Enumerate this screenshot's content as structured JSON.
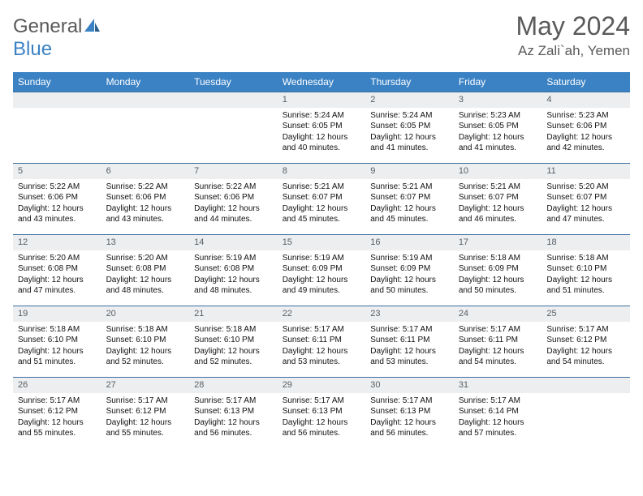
{
  "logo": {
    "textGeneral": "General",
    "textBlue": "Blue"
  },
  "title": "May 2024",
  "location": "Az Zali`ah, Yemen",
  "colors": {
    "header_bg": "#3b82c4",
    "header_text": "#ffffff",
    "row_border": "#3b6fa0",
    "daynum_bg": "#eceeef",
    "daynum_text": "#576068",
    "body_text": "#111111",
    "page_bg": "#ffffff",
    "title_text": "#5a5a5a"
  },
  "typography": {
    "title_fontsize": 32,
    "location_fontsize": 17,
    "dayheader_fontsize": 12,
    "daynum_fontsize": 11,
    "body_fontsize": 10
  },
  "day_headers": [
    "Sunday",
    "Monday",
    "Tuesday",
    "Wednesday",
    "Thursday",
    "Friday",
    "Saturday"
  ],
  "weeks": [
    [
      {
        "num": "",
        "sunrise": "",
        "sunset": "",
        "daylight": ""
      },
      {
        "num": "",
        "sunrise": "",
        "sunset": "",
        "daylight": ""
      },
      {
        "num": "",
        "sunrise": "",
        "sunset": "",
        "daylight": ""
      },
      {
        "num": "1",
        "sunrise": "Sunrise: 5:24 AM",
        "sunset": "Sunset: 6:05 PM",
        "daylight": "Daylight: 12 hours and 40 minutes."
      },
      {
        "num": "2",
        "sunrise": "Sunrise: 5:24 AM",
        "sunset": "Sunset: 6:05 PM",
        "daylight": "Daylight: 12 hours and 41 minutes."
      },
      {
        "num": "3",
        "sunrise": "Sunrise: 5:23 AM",
        "sunset": "Sunset: 6:05 PM",
        "daylight": "Daylight: 12 hours and 41 minutes."
      },
      {
        "num": "4",
        "sunrise": "Sunrise: 5:23 AM",
        "sunset": "Sunset: 6:06 PM",
        "daylight": "Daylight: 12 hours and 42 minutes."
      }
    ],
    [
      {
        "num": "5",
        "sunrise": "Sunrise: 5:22 AM",
        "sunset": "Sunset: 6:06 PM",
        "daylight": "Daylight: 12 hours and 43 minutes."
      },
      {
        "num": "6",
        "sunrise": "Sunrise: 5:22 AM",
        "sunset": "Sunset: 6:06 PM",
        "daylight": "Daylight: 12 hours and 43 minutes."
      },
      {
        "num": "7",
        "sunrise": "Sunrise: 5:22 AM",
        "sunset": "Sunset: 6:06 PM",
        "daylight": "Daylight: 12 hours and 44 minutes."
      },
      {
        "num": "8",
        "sunrise": "Sunrise: 5:21 AM",
        "sunset": "Sunset: 6:07 PM",
        "daylight": "Daylight: 12 hours and 45 minutes."
      },
      {
        "num": "9",
        "sunrise": "Sunrise: 5:21 AM",
        "sunset": "Sunset: 6:07 PM",
        "daylight": "Daylight: 12 hours and 45 minutes."
      },
      {
        "num": "10",
        "sunrise": "Sunrise: 5:21 AM",
        "sunset": "Sunset: 6:07 PM",
        "daylight": "Daylight: 12 hours and 46 minutes."
      },
      {
        "num": "11",
        "sunrise": "Sunrise: 5:20 AM",
        "sunset": "Sunset: 6:07 PM",
        "daylight": "Daylight: 12 hours and 47 minutes."
      }
    ],
    [
      {
        "num": "12",
        "sunrise": "Sunrise: 5:20 AM",
        "sunset": "Sunset: 6:08 PM",
        "daylight": "Daylight: 12 hours and 47 minutes."
      },
      {
        "num": "13",
        "sunrise": "Sunrise: 5:20 AM",
        "sunset": "Sunset: 6:08 PM",
        "daylight": "Daylight: 12 hours and 48 minutes."
      },
      {
        "num": "14",
        "sunrise": "Sunrise: 5:19 AM",
        "sunset": "Sunset: 6:08 PM",
        "daylight": "Daylight: 12 hours and 48 minutes."
      },
      {
        "num": "15",
        "sunrise": "Sunrise: 5:19 AM",
        "sunset": "Sunset: 6:09 PM",
        "daylight": "Daylight: 12 hours and 49 minutes."
      },
      {
        "num": "16",
        "sunrise": "Sunrise: 5:19 AM",
        "sunset": "Sunset: 6:09 PM",
        "daylight": "Daylight: 12 hours and 50 minutes."
      },
      {
        "num": "17",
        "sunrise": "Sunrise: 5:18 AM",
        "sunset": "Sunset: 6:09 PM",
        "daylight": "Daylight: 12 hours and 50 minutes."
      },
      {
        "num": "18",
        "sunrise": "Sunrise: 5:18 AM",
        "sunset": "Sunset: 6:10 PM",
        "daylight": "Daylight: 12 hours and 51 minutes."
      }
    ],
    [
      {
        "num": "19",
        "sunrise": "Sunrise: 5:18 AM",
        "sunset": "Sunset: 6:10 PM",
        "daylight": "Daylight: 12 hours and 51 minutes."
      },
      {
        "num": "20",
        "sunrise": "Sunrise: 5:18 AM",
        "sunset": "Sunset: 6:10 PM",
        "daylight": "Daylight: 12 hours and 52 minutes."
      },
      {
        "num": "21",
        "sunrise": "Sunrise: 5:18 AM",
        "sunset": "Sunset: 6:10 PM",
        "daylight": "Daylight: 12 hours and 52 minutes."
      },
      {
        "num": "22",
        "sunrise": "Sunrise: 5:17 AM",
        "sunset": "Sunset: 6:11 PM",
        "daylight": "Daylight: 12 hours and 53 minutes."
      },
      {
        "num": "23",
        "sunrise": "Sunrise: 5:17 AM",
        "sunset": "Sunset: 6:11 PM",
        "daylight": "Daylight: 12 hours and 53 minutes."
      },
      {
        "num": "24",
        "sunrise": "Sunrise: 5:17 AM",
        "sunset": "Sunset: 6:11 PM",
        "daylight": "Daylight: 12 hours and 54 minutes."
      },
      {
        "num": "25",
        "sunrise": "Sunrise: 5:17 AM",
        "sunset": "Sunset: 6:12 PM",
        "daylight": "Daylight: 12 hours and 54 minutes."
      }
    ],
    [
      {
        "num": "26",
        "sunrise": "Sunrise: 5:17 AM",
        "sunset": "Sunset: 6:12 PM",
        "daylight": "Daylight: 12 hours and 55 minutes."
      },
      {
        "num": "27",
        "sunrise": "Sunrise: 5:17 AM",
        "sunset": "Sunset: 6:12 PM",
        "daylight": "Daylight: 12 hours and 55 minutes."
      },
      {
        "num": "28",
        "sunrise": "Sunrise: 5:17 AM",
        "sunset": "Sunset: 6:13 PM",
        "daylight": "Daylight: 12 hours and 56 minutes."
      },
      {
        "num": "29",
        "sunrise": "Sunrise: 5:17 AM",
        "sunset": "Sunset: 6:13 PM",
        "daylight": "Daylight: 12 hours and 56 minutes."
      },
      {
        "num": "30",
        "sunrise": "Sunrise: 5:17 AM",
        "sunset": "Sunset: 6:13 PM",
        "daylight": "Daylight: 12 hours and 56 minutes."
      },
      {
        "num": "31",
        "sunrise": "Sunrise: 5:17 AM",
        "sunset": "Sunset: 6:14 PM",
        "daylight": "Daylight: 12 hours and 57 minutes."
      },
      {
        "num": "",
        "sunrise": "",
        "sunset": "",
        "daylight": ""
      }
    ]
  ]
}
